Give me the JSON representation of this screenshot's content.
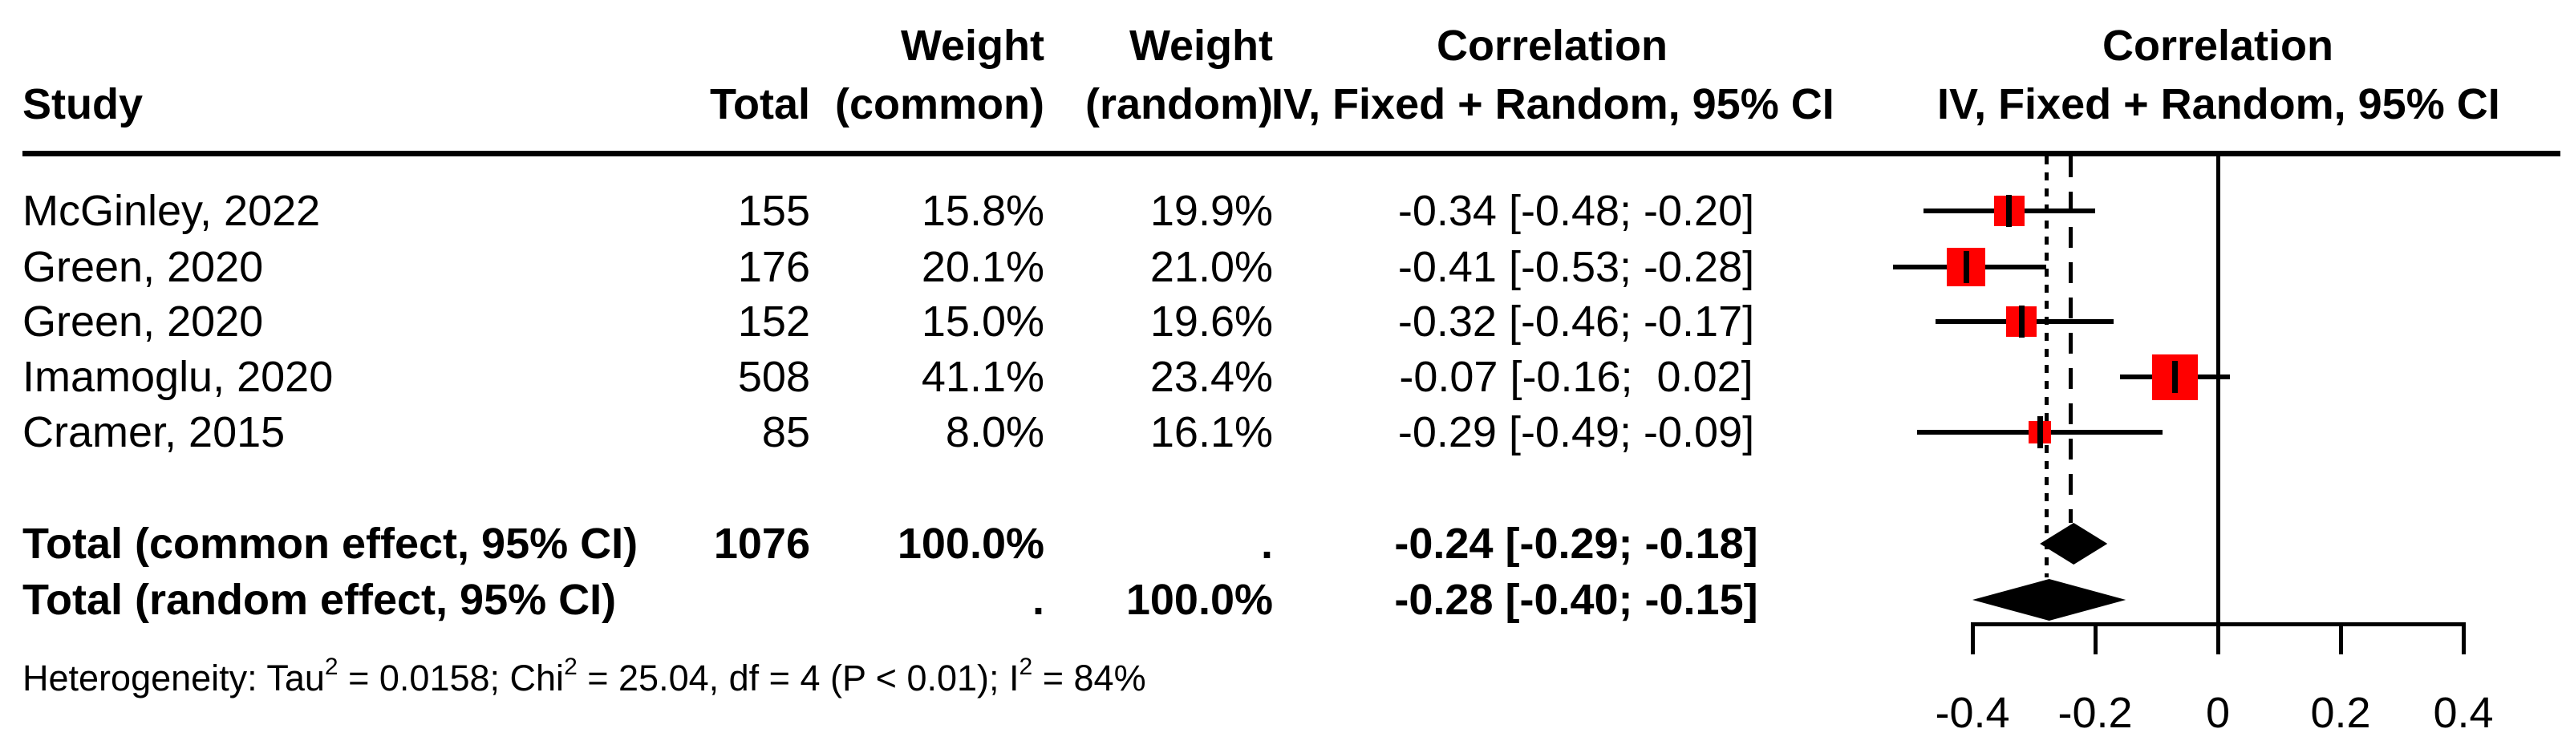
{
  "chart_data": {
    "type": "forest",
    "headers": {
      "study": "Study",
      "total": "Total",
      "weight_common_top": "Weight",
      "weight_common_bottom": "(common)",
      "weight_random_top": "Weight",
      "weight_random_bottom": "(random)",
      "ci_top": "Correlation",
      "ci_bottom": "IV, Fixed + Random, 95% CI",
      "plot_top": "Correlation",
      "plot_bottom": "IV, Fixed + Random, 95% CI"
    },
    "rows": [
      {
        "study": "McGinley, 2022",
        "total": "155",
        "weight_common": "15.8%",
        "weight_random": "19.9%",
        "ci_text": "-0.34 [-0.48; -0.20]",
        "estimate": -0.34,
        "lower": -0.48,
        "upper": -0.2
      },
      {
        "study": "Green, 2020",
        "total": "176",
        "weight_common": "20.1%",
        "weight_random": "21.0%",
        "ci_text": "-0.41 [-0.53; -0.28]",
        "estimate": -0.41,
        "lower": -0.53,
        "upper": -0.28
      },
      {
        "study": "Green, 2020",
        "total": "152",
        "weight_common": "15.0%",
        "weight_random": "19.6%",
        "ci_text": "-0.32 [-0.46; -0.17]",
        "estimate": -0.32,
        "lower": -0.46,
        "upper": -0.17
      },
      {
        "study": "Imamoglu, 2020",
        "total": "508",
        "weight_common": "41.1%",
        "weight_random": "23.4%",
        "ci_text": "-0.07 [-0.16;  0.02]",
        "estimate": -0.07,
        "lower": -0.16,
        "upper": 0.02
      },
      {
        "study": "Cramer, 2015",
        "total": "85",
        "weight_common": "8.0%",
        "weight_random": "16.1%",
        "ci_text": "-0.29 [-0.49; -0.09]",
        "estimate": -0.29,
        "lower": -0.49,
        "upper": -0.09
      }
    ],
    "totals": [
      {
        "label": "Total (common effect, 95% CI)",
        "total": "1076",
        "weight_common": "100.0%",
        "weight_random": ".",
        "ci_text": "-0.24 [-0.29; -0.18]",
        "estimate": -0.24,
        "lower": -0.29,
        "upper": -0.18
      },
      {
        "label": "Total (random effect, 95% CI)",
        "total": "",
        "weight_common": ".",
        "weight_random": "100.0%",
        "ci_text": "-0.28 [-0.40; -0.15]",
        "estimate": -0.28,
        "lower": -0.4,
        "upper": -0.15
      }
    ],
    "heterogeneity": {
      "prefix": "Heterogeneity: Tau",
      "sup1": "2",
      "mid1": " = 0.0158; Chi",
      "sup2": "2",
      "mid2": " = 25.04, df = 4 (P < 0.01); I",
      "sup3": "2",
      "suffix": " = 84%"
    },
    "axis": {
      "xlim": [
        -0.4,
        0.4
      ],
      "tick_values": [
        -0.4,
        -0.2,
        0,
        0.2,
        0.4
      ],
      "tick_labels": [
        "-0.4",
        "-0.2",
        "0",
        "0.2",
        "0.4"
      ]
    },
    "ref_lines": {
      "zero": 0,
      "common_effect": -0.24,
      "random_effect": -0.28
    },
    "colors": {
      "square_red": "#ff0000",
      "diamond_black": "#000000",
      "text": "#000000"
    }
  }
}
